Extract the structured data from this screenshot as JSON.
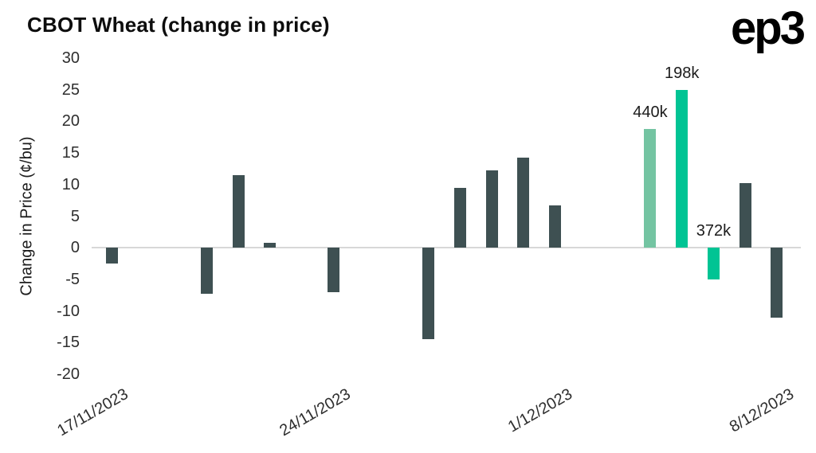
{
  "title": "CBOT Wheat (change in price)",
  "logo": "ep3",
  "chart_data": {
    "type": "bar",
    "title": "CBOT Wheat (change in price)",
    "xlabel": "",
    "ylabel": "Change in Price (¢/bu)",
    "ylim": [
      -20,
      30
    ],
    "ytick_step": 5,
    "yticks": [
      30,
      25,
      20,
      15,
      10,
      5,
      0,
      -5,
      -10,
      -15,
      -20
    ],
    "grid": "zero-line-only",
    "legend": "none",
    "xticks": [
      {
        "label": "17/11/2023",
        "slot": 0
      },
      {
        "label": "24/11/2023",
        "slot": 7
      },
      {
        "label": "1/12/2023",
        "slot": 14
      },
      {
        "label": "8/12/2023",
        "slot": 21
      }
    ],
    "bars": [
      {
        "date": "17/11/2023",
        "slot": 0,
        "value": -2.5,
        "color": "default"
      },
      {
        "date": "20/11/2023",
        "slot": 3,
        "value": -7.25,
        "color": "default"
      },
      {
        "date": "21/11/2023",
        "slot": 4,
        "value": 11.5,
        "color": "default"
      },
      {
        "date": "22/11/2023",
        "slot": 5,
        "value": 0.75,
        "color": "default"
      },
      {
        "date": "24/11/2023",
        "slot": 7,
        "value": -7.0,
        "color": "default"
      },
      {
        "date": "27/11/2023",
        "slot": 10,
        "value": -14.5,
        "color": "default"
      },
      {
        "date": "28/11/2023",
        "slot": 11,
        "value": 9.5,
        "color": "default"
      },
      {
        "date": "29/11/2023",
        "slot": 12,
        "value": 12.25,
        "color": "default"
      },
      {
        "date": "30/11/2023",
        "slot": 13,
        "value": 14.25,
        "color": "default"
      },
      {
        "date": "1/12/2023",
        "slot": 14,
        "value": 6.75,
        "color": "default"
      },
      {
        "date": "4/12/2023",
        "slot": 17,
        "value": 18.75,
        "color": "light",
        "label": "440k"
      },
      {
        "date": "5/12/2023",
        "slot": 18,
        "value": 25.0,
        "color": "accent",
        "label": "198k"
      },
      {
        "date": "6/12/2023",
        "slot": 19,
        "value": -5.0,
        "color": "accent",
        "label": "372k"
      },
      {
        "date": "7/12/2023",
        "slot": 20,
        "value": 10.25,
        "color": "default"
      },
      {
        "date": "8/12/2023",
        "slot": 21,
        "value": -11.0,
        "color": "default"
      }
    ],
    "colors": {
      "default": "#3e5052",
      "light": "#74c4a2",
      "accent": "#00c494",
      "zero_line": "#d8d8d8",
      "background": "#ffffff"
    },
    "annotations": [
      "440k",
      "198k",
      "372k"
    ]
  }
}
